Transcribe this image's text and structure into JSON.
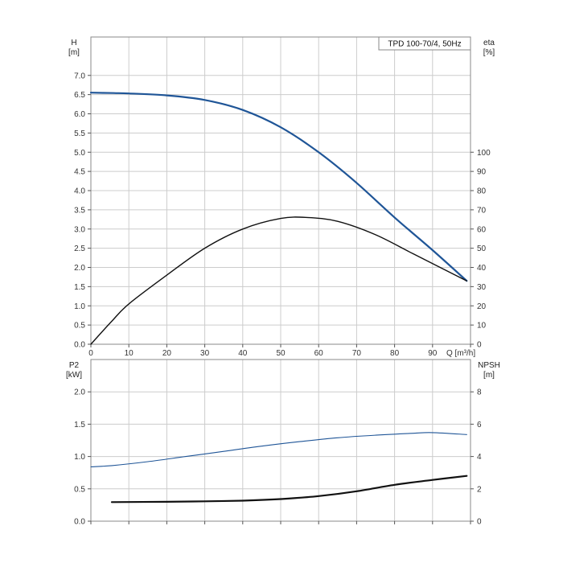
{
  "colors": {
    "head": "#1f5597",
    "efficiency": "#111111",
    "power": "#1f5597",
    "npsh": "#111111",
    "grid": "#cccccc",
    "frame": "#888888"
  },
  "chart_data": [
    {
      "type": "line",
      "legend": "TPD 100-70/4, 50Hz",
      "xlabel": "Q [m³/h]",
      "xlim": [
        0,
        100
      ],
      "xticks": [
        0,
        10,
        20,
        30,
        40,
        50,
        60,
        70,
        80,
        90
      ],
      "left_axis": {
        "name": "H",
        "unit": "[m]",
        "lim": [
          0,
          8
        ],
        "ticks": [
          "0.0",
          "0.5",
          "1.0",
          "1.5",
          "2.0",
          "2.5",
          "3.0",
          "3.5",
          "4.0",
          "4.5",
          "5.0",
          "5.5",
          "6.0",
          "6.5",
          "7.0"
        ]
      },
      "right_axis": {
        "name": "eta",
        "unit": "[%]",
        "lim": [
          0,
          160
        ],
        "ticks": [
          "0",
          "10",
          "20",
          "30",
          "40",
          "50",
          "60",
          "70",
          "80",
          "90",
          "100"
        ]
      },
      "grid": true,
      "series": [
        {
          "axis": "left",
          "color_key": "head",
          "x": [
            0,
            6,
            10,
            20,
            30,
            40,
            50,
            60,
            70,
            80,
            90,
            99
          ],
          "y": [
            6.55,
            6.54,
            6.53,
            6.48,
            6.36,
            6.1,
            5.65,
            5.0,
            4.2,
            3.3,
            2.45,
            1.65
          ]
        },
        {
          "axis": "right",
          "color_key": "efficiency",
          "x": [
            0,
            5.5,
            10,
            20,
            30,
            40,
            50,
            57,
            65,
            75,
            85,
            99
          ],
          "y": [
            0,
            12,
            21,
            36,
            50,
            60,
            65.5,
            66,
            64,
            57,
            47,
            33
          ]
        }
      ]
    },
    {
      "type": "line",
      "xlim": [
        0,
        100
      ],
      "left_axis": {
        "name": "P2",
        "unit": "[kW]",
        "lim": [
          0,
          2.5
        ],
        "ticks": [
          "0.0",
          "0.5",
          "1.0",
          "1.5",
          "2.0"
        ]
      },
      "right_axis": {
        "name": "NPSH",
        "unit": "[m]",
        "lim": [
          0,
          10
        ],
        "ticks": [
          "0",
          "2",
          "4",
          "6",
          "8"
        ]
      },
      "grid": true,
      "series": [
        {
          "axis": "left",
          "color_key": "power",
          "x": [
            0,
            5.5,
            15,
            25,
            35,
            45,
            55,
            65,
            75,
            85,
            90,
            99
          ],
          "y": [
            0.84,
            0.86,
            0.92,
            1.0,
            1.08,
            1.16,
            1.23,
            1.29,
            1.33,
            1.36,
            1.37,
            1.34
          ]
        },
        {
          "axis": "right",
          "color_key": "npsh",
          "x": [
            5.5,
            20,
            30,
            40,
            50,
            60,
            70,
            80,
            90,
            99
          ],
          "y": [
            1.18,
            1.2,
            1.23,
            1.27,
            1.37,
            1.55,
            1.85,
            2.25,
            2.55,
            2.8
          ]
        }
      ]
    }
  ]
}
